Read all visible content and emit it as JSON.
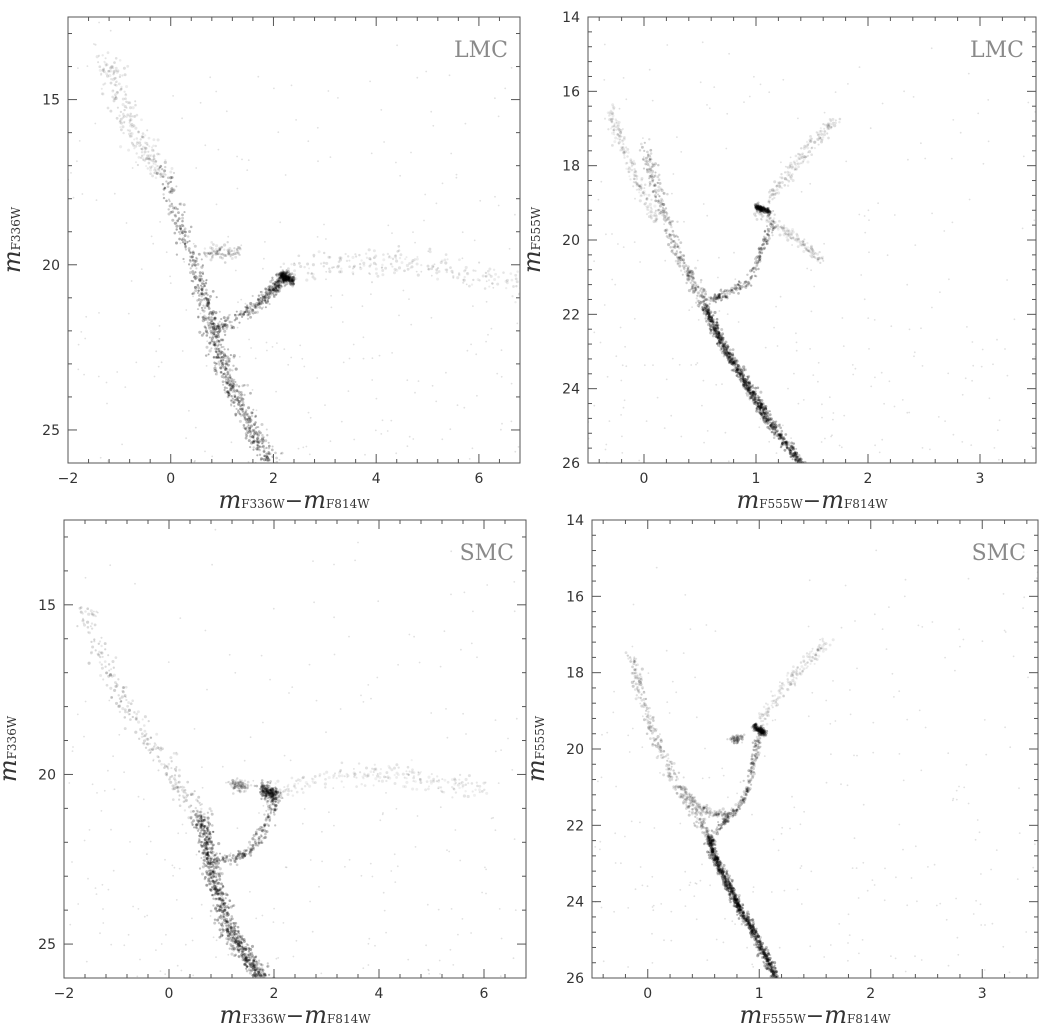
{
  "chart_data": [
    {
      "type": "scatter",
      "panel_label": "LMC",
      "xlim": [
        -2,
        6.8
      ],
      "ylim": [
        26,
        12.5
      ],
      "y_inverted": true,
      "xticks": [
        -2,
        0,
        2,
        4,
        6
      ],
      "yticks": [
        15,
        20,
        25
      ],
      "xlabel": {
        "m1": "m",
        "s1": "F336W",
        "minus": "−",
        "m2": "m",
        "s2": "F814W"
      },
      "ylabel": {
        "m": "m",
        "s": "F336W"
      },
      "seed": 11,
      "series": [
        {
          "name": "",
          "n": 700,
          "spread": 0.09,
          "weight": 0.85,
          "x": [
            -0.2,
            0.2,
            0.5,
            0.7,
            0.85,
            1.0,
            1.2,
            1.45,
            1.7,
            1.95
          ],
          "y": [
            17.0,
            18.8,
            20.3,
            21.3,
            22.2,
            23.0,
            23.8,
            24.6,
            25.3,
            26.0
          ]
        },
        {
          "name": "",
          "n": 300,
          "spread": 0.06,
          "weight": 0.8,
          "x": [
            0.8,
            1.3,
            1.7,
            1.9,
            2.1,
            2.2
          ],
          "y": [
            22.0,
            21.6,
            21.2,
            20.9,
            20.6,
            20.4
          ]
        },
        {
          "name": "",
          "n": 200,
          "spread": 0.05,
          "weight": 0.8,
          "x": [
            2.15,
            2.25,
            2.35
          ],
          "y": [
            20.3,
            20.4,
            20.5
          ]
        },
        {
          "name": "",
          "n": 220,
          "spread": 0.12,
          "weight": 0.35,
          "x": [
            2.2,
            3.0,
            4.0,
            5.0,
            6.0,
            6.8
          ],
          "y": [
            20.3,
            20.0,
            19.9,
            20.0,
            20.3,
            20.6
          ]
        },
        {
          "name": "",
          "n": 250,
          "spread": 0.12,
          "weight": 0.35,
          "x": [
            -1.3,
            -1.0,
            -0.6,
            -0.2
          ],
          "y": [
            13.7,
            15.0,
            16.3,
            17.2
          ]
        },
        {
          "name": "",
          "n": 90,
          "spread": 0.06,
          "weight": 0.45,
          "x": [
            0.7,
            1.0,
            1.3
          ],
          "y": [
            19.65,
            19.6,
            19.65
          ]
        }
      ]
    },
    {
      "type": "scatter",
      "panel_label": "LMC",
      "xlim": [
        -0.5,
        3.5
      ],
      "ylim": [
        26,
        14
      ],
      "y_inverted": true,
      "xticks": [
        0,
        1,
        2,
        3
      ],
      "yticks": [
        14,
        16,
        18,
        20,
        22,
        24,
        26
      ],
      "xlabel": {
        "m1": "m",
        "s1": "F555W",
        "minus": "−",
        "m2": "m",
        "s2": "F814W"
      },
      "ylabel": {
        "m": "m",
        "s": "F555W"
      },
      "seed": 23,
      "series": [
        {
          "name": "",
          "n": 900,
          "spread": 0.045,
          "weight": 0.9,
          "x": [
            0.55,
            0.62,
            0.7,
            0.8,
            0.9,
            1.0,
            1.1,
            1.25,
            1.4
          ],
          "y": [
            21.8,
            22.3,
            22.8,
            23.3,
            23.8,
            24.3,
            24.8,
            25.4,
            26.0
          ]
        },
        {
          "name": "",
          "n": 320,
          "spread": 0.06,
          "weight": 0.6,
          "x": [
            0.0,
            0.15,
            0.3,
            0.45,
            0.55
          ],
          "y": [
            17.5,
            19.0,
            20.3,
            21.2,
            21.8
          ]
        },
        {
          "name": "",
          "n": 200,
          "spread": 0.04,
          "weight": 0.75,
          "x": [
            0.6,
            0.75,
            0.95,
            1.05,
            1.15
          ],
          "y": [
            21.6,
            21.4,
            21.1,
            20.3,
            19.5
          ]
        },
        {
          "name": "",
          "n": 160,
          "spread": 0.03,
          "weight": 0.85,
          "x": [
            1.0,
            1.05,
            1.12
          ],
          "y": [
            19.1,
            19.15,
            19.25
          ]
        },
        {
          "name": "",
          "n": 170,
          "spread": 0.06,
          "weight": 0.35,
          "x": [
            1.1,
            1.3,
            1.5,
            1.7
          ],
          "y": [
            19.0,
            18.2,
            17.4,
            16.8
          ]
        },
        {
          "name": "",
          "n": 150,
          "spread": 0.05,
          "weight": 0.35,
          "x": [
            1.0,
            1.2,
            1.4,
            1.6
          ],
          "y": [
            19.2,
            19.6,
            20.1,
            20.6
          ]
        },
        {
          "name": "",
          "n": 200,
          "spread": 0.06,
          "weight": 0.3,
          "x": [
            -0.3,
            -0.2,
            -0.05,
            0.1
          ],
          "y": [
            16.5,
            17.5,
            18.5,
            19.5
          ]
        }
      ]
    },
    {
      "type": "scatter",
      "panel_label": "SMC",
      "xlim": [
        -2,
        6.8
      ],
      "ylim": [
        26,
        12.5
      ],
      "y_inverted": true,
      "xticks": [
        -2,
        0,
        2,
        4,
        6
      ],
      "yticks": [
        15,
        20,
        25
      ],
      "xlabel": {
        "m1": "m",
        "s1": "F336W",
        "minus": "−",
        "m2": "m",
        "s2": "F814W"
      },
      "ylabel": {
        "m": "m",
        "s": "F336W"
      },
      "seed": 37,
      "series": [
        {
          "name": "",
          "n": 750,
          "spread": 0.08,
          "weight": 0.9,
          "x": [
            0.6,
            0.7,
            0.8,
            0.95,
            1.1,
            1.3,
            1.55,
            1.8
          ],
          "y": [
            21.2,
            22.0,
            22.8,
            23.6,
            24.4,
            25.0,
            25.5,
            26.0
          ]
        },
        {
          "name": "",
          "n": 260,
          "spread": 0.1,
          "weight": 0.45,
          "x": [
            -1.6,
            -1.3,
            -0.8,
            -0.3,
            0.2,
            0.6
          ],
          "y": [
            15.0,
            16.6,
            18.0,
            19.2,
            20.3,
            21.2
          ]
        },
        {
          "name": "",
          "n": 200,
          "spread": 0.05,
          "weight": 0.75,
          "x": [
            0.8,
            1.2,
            1.6,
            1.8,
            1.95,
            2.05
          ],
          "y": [
            22.5,
            22.5,
            22.2,
            21.6,
            21.0,
            20.6
          ]
        },
        {
          "name": "",
          "n": 180,
          "spread": 0.07,
          "weight": 0.85,
          "x": [
            1.8,
            1.9,
            2.0
          ],
          "y": [
            20.4,
            20.5,
            20.6
          ]
        },
        {
          "name": "",
          "n": 220,
          "spread": 0.1,
          "weight": 0.3,
          "x": [
            2.0,
            2.8,
            3.6,
            4.4,
            5.2,
            6.0
          ],
          "y": [
            20.5,
            20.2,
            20.0,
            20.0,
            20.2,
            20.5
          ]
        },
        {
          "name": "",
          "n": 80,
          "spread": 0.05,
          "weight": 0.5,
          "x": [
            1.2,
            1.35,
            1.5
          ],
          "y": [
            20.3,
            20.3,
            20.35
          ]
        }
      ]
    },
    {
      "type": "scatter",
      "panel_label": "SMC",
      "xlim": [
        -0.5,
        3.5
      ],
      "ylim": [
        26,
        14
      ],
      "y_inverted": true,
      "xticks": [
        0,
        1,
        2,
        3
      ],
      "yticks": [
        14,
        16,
        18,
        20,
        22,
        24,
        26
      ],
      "xlabel": {
        "m1": "m",
        "s1": "F555W",
        "minus": "−",
        "m2": "m",
        "s2": "F814W"
      },
      "ylabel": {
        "m": "m",
        "s": "F555W"
      },
      "seed": 53,
      "series": [
        {
          "name": "",
          "n": 900,
          "spread": 0.04,
          "weight": 0.9,
          "x": [
            0.55,
            0.6,
            0.68,
            0.76,
            0.85,
            0.95,
            1.05,
            1.15
          ],
          "y": [
            22.3,
            22.8,
            23.3,
            23.8,
            24.3,
            24.8,
            25.4,
            26.0
          ]
        },
        {
          "name": "",
          "n": 300,
          "spread": 0.06,
          "weight": 0.5,
          "x": [
            -0.15,
            -0.05,
            0.1,
            0.25,
            0.4,
            0.55
          ],
          "y": [
            17.5,
            18.7,
            19.9,
            20.9,
            21.6,
            22.3
          ]
        },
        {
          "name": "",
          "n": 200,
          "spread": 0.035,
          "weight": 0.7,
          "x": [
            0.6,
            0.72,
            0.82,
            0.9,
            0.95,
            1.0
          ],
          "y": [
            22.2,
            21.8,
            21.5,
            21.0,
            20.3,
            19.6
          ]
        },
        {
          "name": "",
          "n": 150,
          "spread": 0.03,
          "weight": 0.85,
          "x": [
            0.95,
            1.0,
            1.05
          ],
          "y": [
            19.4,
            19.5,
            19.6
          ]
        },
        {
          "name": "",
          "n": 170,
          "spread": 0.06,
          "weight": 0.3,
          "x": [
            1.0,
            1.2,
            1.4,
            1.6
          ],
          "y": [
            19.3,
            18.5,
            17.8,
            17.2
          ]
        },
        {
          "name": "",
          "n": 60,
          "spread": 0.04,
          "weight": 0.55,
          "x": [
            0.75,
            0.8,
            0.85
          ],
          "y": [
            19.75,
            19.75,
            19.7
          ]
        },
        {
          "name": "",
          "n": 140,
          "spread": 0.04,
          "weight": 0.45,
          "x": [
            0.3,
            0.45,
            0.6,
            0.75
          ],
          "y": [
            21.0,
            21.5,
            21.7,
            21.7
          ]
        }
      ]
    }
  ]
}
